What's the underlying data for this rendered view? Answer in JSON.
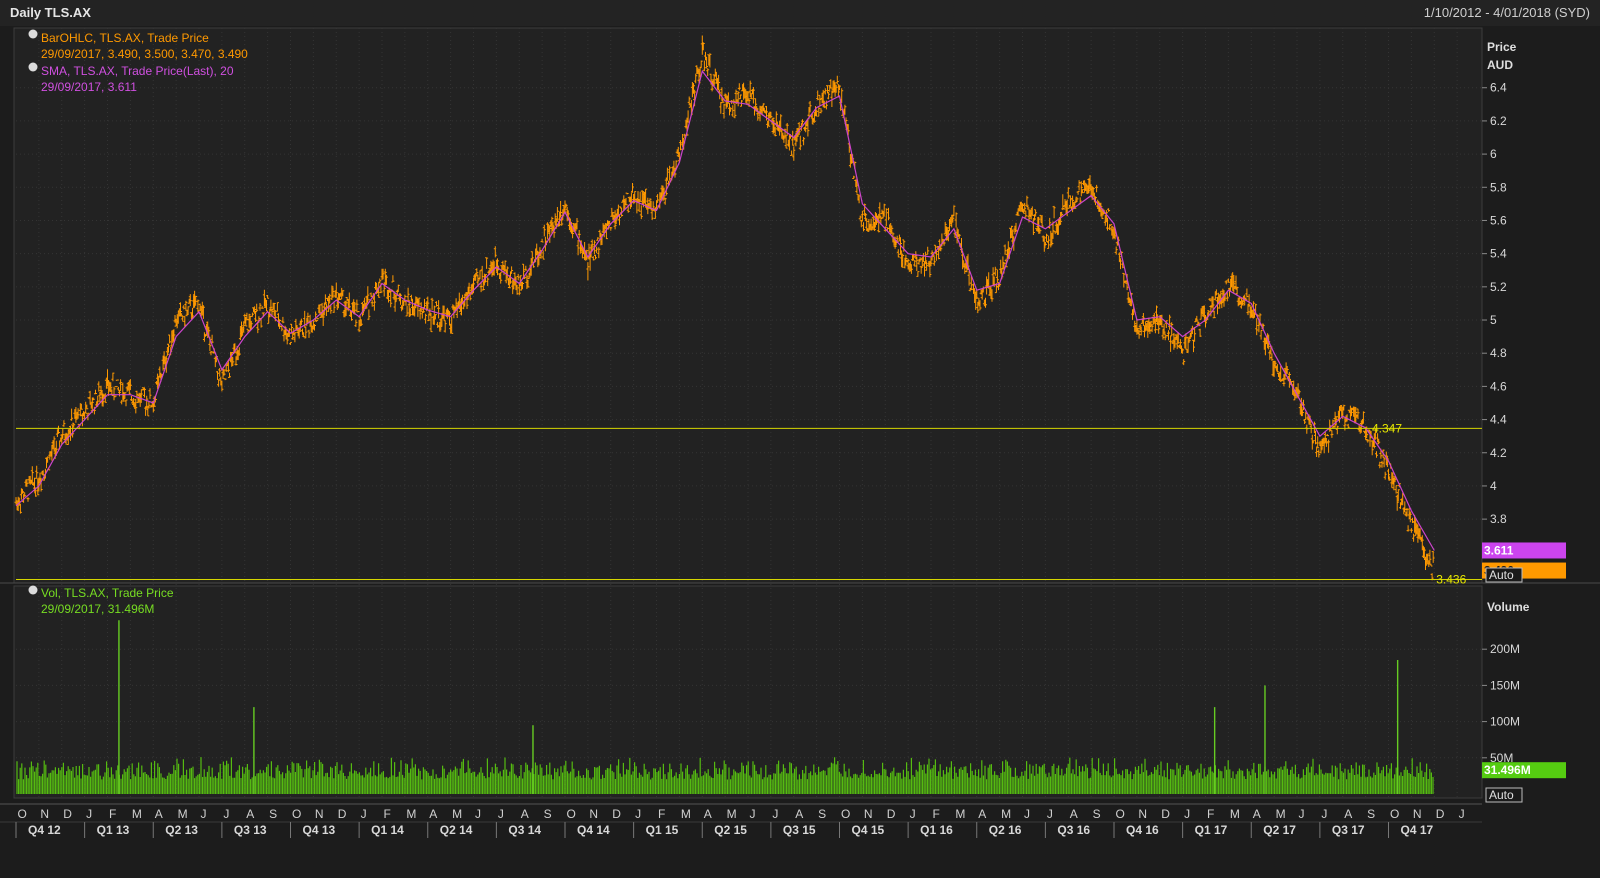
{
  "header": {
    "title": "Daily TLS.AX",
    "date_range": "1/10/2012 - 4/01/2018 (SYD)"
  },
  "price_panel": {
    "axis_title": "Price",
    "axis_unit": "AUD",
    "auto_label": "Auto",
    "legend": [
      {
        "icon": "globe-icon",
        "line1": "BarOHLC, TLS.AX, Trade Price",
        "line2": "29/09/2017, 3.490, 3.500, 3.470, 3.490",
        "color": "#ff9900"
      },
      {
        "icon": "globe-icon",
        "line1": "SMA, TLS.AX, Trade Price(Last),  20",
        "line2": "29/09/2017, 3.611",
        "color": "#cc44cc"
      }
    ],
    "tick_labels": [
      "6.4",
      "6.2",
      "6",
      "5.8",
      "5.6",
      "5.4",
      "5.2",
      "5",
      "4.8",
      "4.6",
      "4.4",
      "4.2",
      "4",
      "3.8"
    ],
    "tick_values": [
      6.4,
      6.2,
      6.0,
      5.8,
      5.6,
      5.4,
      5.2,
      5.0,
      4.8,
      4.6,
      4.4,
      4.2,
      4.0,
      3.8
    ],
    "hlines": [
      {
        "value": 4.347,
        "label": "4.347"
      },
      {
        "value": 3.436,
        "label": "3.436"
      }
    ],
    "last_tags": [
      {
        "label": "3.611",
        "value": 3.611,
        "color": "#cc44ee"
      },
      {
        "label": "3.490",
        "value": 3.49,
        "color": "#ff9900"
      }
    ]
  },
  "volume_panel": {
    "axis_title": "Volume",
    "auto_label": "Auto",
    "legend": {
      "icon": "globe-icon",
      "line1": "Vol, TLS.AX, Trade Price",
      "line2": "29/09/2017, 31.496M",
      "color": "#66cc22"
    },
    "tick_labels": [
      "200M",
      "150M",
      "100M",
      "50M"
    ],
    "tick_values": [
      200,
      150,
      100,
      50
    ],
    "last_tag": {
      "label": "31.496M",
      "value": 31.496,
      "color": "#55cc11"
    }
  },
  "x_axis": {
    "months": [
      "O",
      "N",
      "D",
      "J",
      "F",
      "M",
      "A",
      "M",
      "J",
      "J",
      "A",
      "S",
      "O",
      "N",
      "D",
      "J",
      "F",
      "M",
      "A",
      "M",
      "J",
      "J",
      "A",
      "S",
      "O",
      "N",
      "D",
      "J",
      "F",
      "M",
      "A",
      "M",
      "J",
      "J",
      "A",
      "S",
      "O",
      "N",
      "D",
      "J",
      "F",
      "M",
      "A",
      "M",
      "J",
      "J",
      "A",
      "S",
      "O",
      "N",
      "D",
      "J",
      "F",
      "M",
      "A",
      "M",
      "J",
      "J",
      "A",
      "S",
      "O",
      "N",
      "D",
      "J"
    ],
    "quarters": [
      "Q4 12",
      "Q1 13",
      "Q2 13",
      "Q3 13",
      "Q4 13",
      "Q1 14",
      "Q2 14",
      "Q3 14",
      "Q4 14",
      "Q1 15",
      "Q2 15",
      "Q3 15",
      "Q4 15",
      "Q1 16",
      "Q2 16",
      "Q3 16",
      "Q4 16",
      "Q1 17",
      "Q2 17",
      "Q3 17",
      "Q4 17"
    ]
  },
  "chart_data": {
    "type": "line",
    "x_unit": "month index (0 = Oct 2012)",
    "price_series": [
      {
        "name": "BarOHLC, TLS.AX, Trade Price",
        "points": [
          [
            0,
            3.9
          ],
          [
            1,
            4.05
          ],
          [
            2,
            4.3
          ],
          [
            3,
            4.45
          ],
          [
            4,
            4.6
          ],
          [
            5,
            4.55
          ],
          [
            6,
            4.5
          ],
          [
            7,
            5.0
          ],
          [
            8,
            5.1
          ],
          [
            9,
            4.6
          ],
          [
            10,
            4.95
          ],
          [
            11,
            5.1
          ],
          [
            12,
            4.9
          ],
          [
            13,
            5.0
          ],
          [
            14,
            5.15
          ],
          [
            15,
            5.0
          ],
          [
            16,
            5.25
          ],
          [
            17,
            5.1
          ],
          [
            18,
            5.05
          ],
          [
            19,
            5.0
          ],
          [
            20,
            5.2
          ],
          [
            21,
            5.35
          ],
          [
            22,
            5.2
          ],
          [
            23,
            5.45
          ],
          [
            24,
            5.7
          ],
          [
            25,
            5.35
          ],
          [
            26,
            5.6
          ],
          [
            27,
            5.75
          ],
          [
            28,
            5.65
          ],
          [
            29,
            6.0
          ],
          [
            30,
            6.6
          ],
          [
            31,
            6.3
          ],
          [
            32,
            6.35
          ],
          [
            33,
            6.2
          ],
          [
            34,
            6.05
          ],
          [
            35,
            6.3
          ],
          [
            36,
            6.4
          ],
          [
            37,
            5.6
          ],
          [
            38,
            5.6
          ],
          [
            39,
            5.35
          ],
          [
            40,
            5.35
          ],
          [
            41,
            5.6
          ],
          [
            42,
            5.1
          ],
          [
            43,
            5.25
          ],
          [
            44,
            5.7
          ],
          [
            45,
            5.5
          ],
          [
            46,
            5.7
          ],
          [
            47,
            5.8
          ],
          [
            48,
            5.55
          ],
          [
            49,
            4.95
          ],
          [
            50,
            5.0
          ],
          [
            51,
            4.8
          ],
          [
            52,
            5.05
          ],
          [
            53,
            5.2
          ],
          [
            54,
            5.1
          ],
          [
            55,
            4.75
          ],
          [
            56,
            4.55
          ],
          [
            57,
            4.2
          ],
          [
            58,
            4.45
          ],
          [
            59,
            4.35
          ],
          [
            60,
            4.1
          ],
          [
            61,
            3.75
          ],
          [
            62,
            3.49
          ]
        ]
      },
      {
        "name": "SMA, TLS.AX, Trade Price(Last),  20",
        "points": [
          [
            0,
            3.88
          ],
          [
            1,
            4.0
          ],
          [
            2,
            4.25
          ],
          [
            3,
            4.4
          ],
          [
            4,
            4.55
          ],
          [
            5,
            4.55
          ],
          [
            6,
            4.5
          ],
          [
            7,
            4.9
          ],
          [
            8,
            5.05
          ],
          [
            9,
            4.7
          ],
          [
            10,
            4.9
          ],
          [
            11,
            5.05
          ],
          [
            12,
            4.92
          ],
          [
            13,
            5.0
          ],
          [
            14,
            5.12
          ],
          [
            15,
            5.02
          ],
          [
            16,
            5.22
          ],
          [
            17,
            5.12
          ],
          [
            18,
            5.06
          ],
          [
            19,
            5.02
          ],
          [
            20,
            5.18
          ],
          [
            21,
            5.32
          ],
          [
            22,
            5.22
          ],
          [
            23,
            5.42
          ],
          [
            24,
            5.65
          ],
          [
            25,
            5.38
          ],
          [
            26,
            5.58
          ],
          [
            27,
            5.72
          ],
          [
            28,
            5.66
          ],
          [
            29,
            5.95
          ],
          [
            30,
            6.5
          ],
          [
            31,
            6.32
          ],
          [
            32,
            6.3
          ],
          [
            33,
            6.2
          ],
          [
            34,
            6.1
          ],
          [
            35,
            6.28
          ],
          [
            36,
            6.35
          ],
          [
            37,
            5.7
          ],
          [
            38,
            5.55
          ],
          [
            39,
            5.4
          ],
          [
            40,
            5.38
          ],
          [
            41,
            5.55
          ],
          [
            42,
            5.18
          ],
          [
            43,
            5.22
          ],
          [
            44,
            5.62
          ],
          [
            45,
            5.55
          ],
          [
            46,
            5.65
          ],
          [
            47,
            5.75
          ],
          [
            48,
            5.58
          ],
          [
            49,
            5.0
          ],
          [
            50,
            5.02
          ],
          [
            51,
            4.9
          ],
          [
            52,
            5.0
          ],
          [
            53,
            5.18
          ],
          [
            54,
            5.1
          ],
          [
            55,
            4.8
          ],
          [
            56,
            4.55
          ],
          [
            57,
            4.3
          ],
          [
            58,
            4.42
          ],
          [
            59,
            4.35
          ],
          [
            60,
            4.15
          ],
          [
            61,
            3.85
          ],
          [
            62,
            3.611
          ]
        ]
      }
    ],
    "volume_series": {
      "name": "Vol, TLS.AX, Trade Price",
      "unit": "M",
      "spikes": [
        {
          "x": 4.5,
          "value": 240
        },
        {
          "x": 10.4,
          "value": 120
        },
        {
          "x": 22.6,
          "value": 95
        },
        {
          "x": 52.4,
          "value": 120
        },
        {
          "x": 54.6,
          "value": 150
        },
        {
          "x": 60.4,
          "value": 185
        }
      ],
      "typical_range": [
        20,
        45
      ],
      "last_value": 31.496
    },
    "y_range_price": [
      3.436,
      6.6
    ],
    "y_range_volume": [
      0,
      250
    ],
    "grid": true
  }
}
